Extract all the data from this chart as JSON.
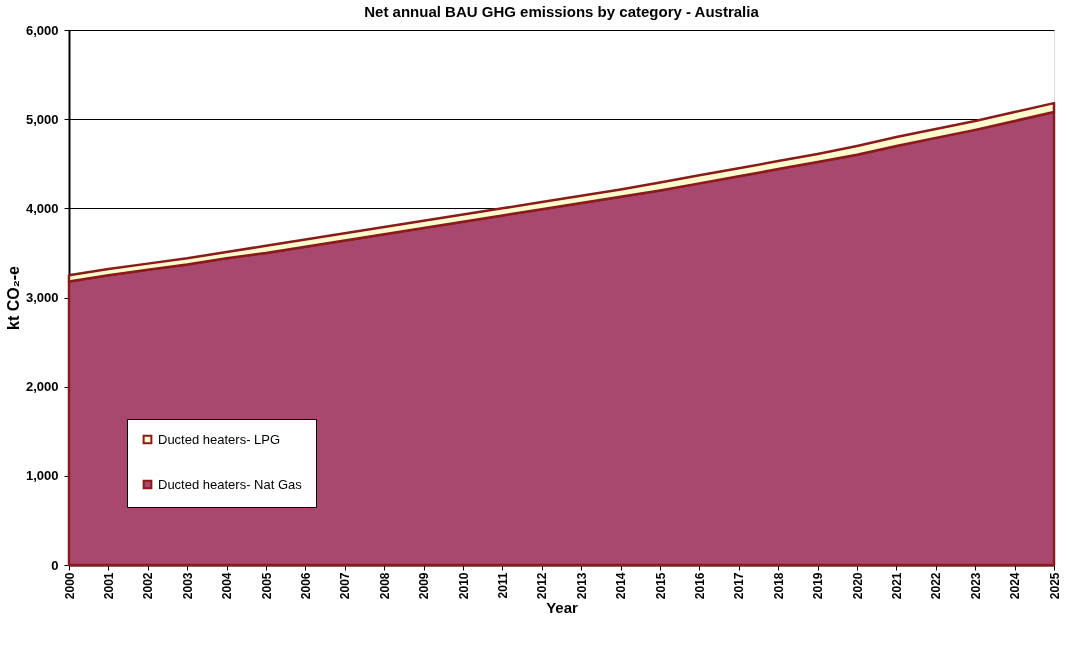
{
  "chart_data": {
    "type": "area",
    "stacked": true,
    "title": "Net annual BAU GHG emissions by category - Australia",
    "xlabel": "Year",
    "ylabel": "kt CO₂-e",
    "categories": [
      "2000",
      "2001",
      "2002",
      "2003",
      "2004",
      "2005",
      "2006",
      "2007",
      "2008",
      "2009",
      "2010",
      "2011",
      "2012",
      "2013",
      "2014",
      "2015",
      "2016",
      "2017",
      "2018",
      "2019",
      "2020",
      "2021",
      "2022",
      "2023",
      "2024",
      "2025"
    ],
    "series": [
      {
        "name": "Ducted heaters- Nat Gas",
        "color": "#a8486f",
        "values": [
          3180,
          3250,
          3310,
          3370,
          3440,
          3500,
          3570,
          3640,
          3710,
          3780,
          3850,
          3920,
          3990,
          4060,
          4130,
          4200,
          4280,
          4360,
          4440,
          4520,
          4600,
          4700,
          4790,
          4880,
          4980,
          5080
        ]
      },
      {
        "name": "Ducted heaters- LPG",
        "color": "#fffacd",
        "values": [
          70,
          70,
          70,
          70,
          70,
          80,
          80,
          80,
          80,
          80,
          80,
          80,
          80,
          80,
          80,
          90,
          90,
          90,
          90,
          90,
          100,
          100,
          100,
          100,
          100,
          100
        ]
      }
    ],
    "ylim": [
      0,
      6000
    ],
    "yticks": [
      0,
      {
        "value": 1000,
        "label": "1,000"
      },
      {
        "value": 2000,
        "label": "2,000"
      },
      {
        "value": 3000,
        "label": "3,000"
      },
      {
        "value": 4000,
        "label": "4,000"
      },
      {
        "value": 5000,
        "label": "5,000"
      },
      {
        "value": 6000,
        "label": "6,000"
      }
    ],
    "grid": "y",
    "legend": "bottom left"
  }
}
